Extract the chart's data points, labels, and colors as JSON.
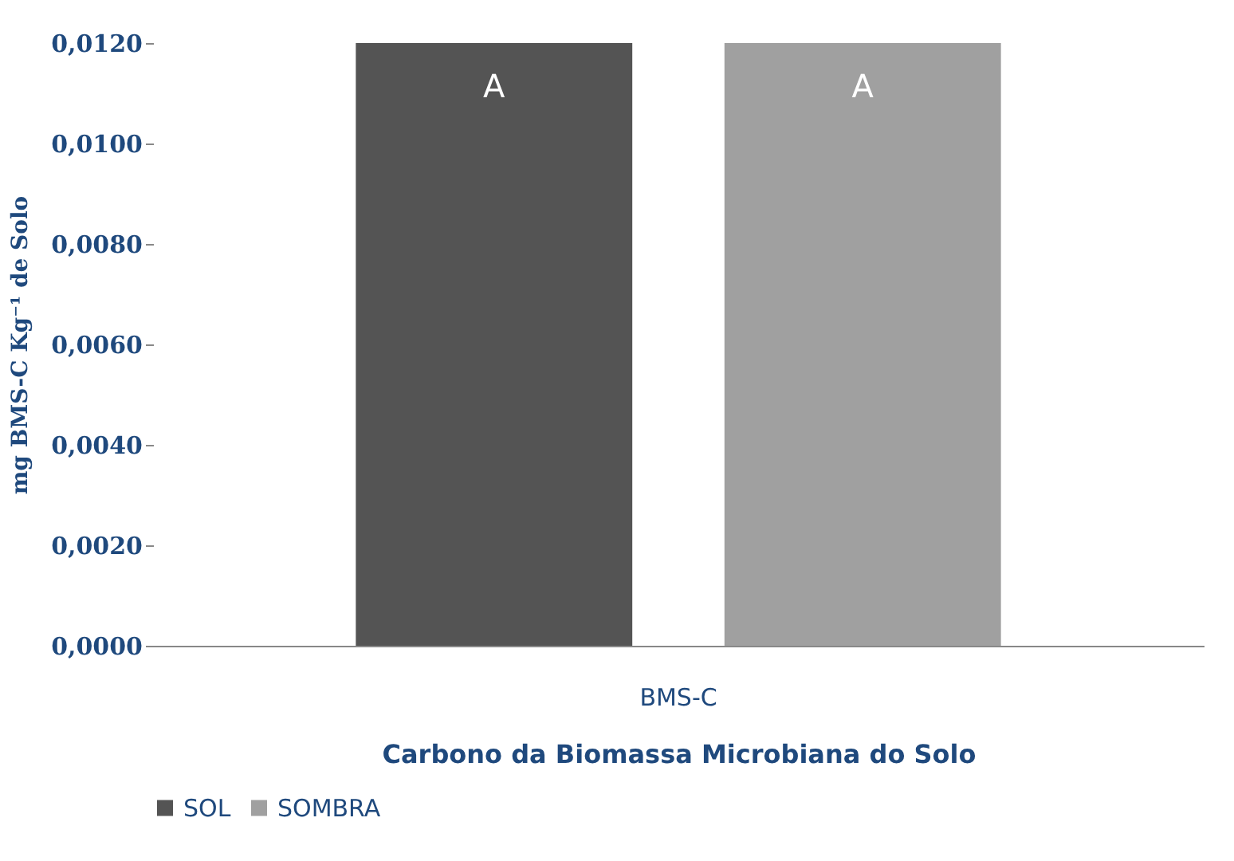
{
  "chart_data": {
    "type": "bar",
    "xlabel": "Carbono da Biomassa Microbiana do Solo",
    "ylabel": "mg BMS-C Kg⁻¹ de Solo",
    "categories": [
      "BMS-C"
    ],
    "series": [
      {
        "name": "SOL",
        "color": "#545454",
        "values": [
          0.012
        ]
      },
      {
        "name": "SOMBRA",
        "color": "#a0a0a0",
        "values": [
          0.012
        ]
      }
    ],
    "annotations": [
      "A",
      "A"
    ],
    "ylim": [
      0,
      0.012
    ],
    "yticks": [
      {
        "value": 0,
        "label": "0,0000"
      },
      {
        "value": 0.002,
        "label": "0,0020"
      },
      {
        "value": 0.004,
        "label": "0,0040"
      },
      {
        "value": 0.006,
        "label": "0,0060"
      },
      {
        "value": 0.008,
        "label": "0,0080"
      },
      {
        "value": 0.01,
        "label": "0,0100"
      },
      {
        "value": 0.012,
        "label": "0,0120"
      }
    ],
    "grid": false,
    "legend": "bottom"
  }
}
